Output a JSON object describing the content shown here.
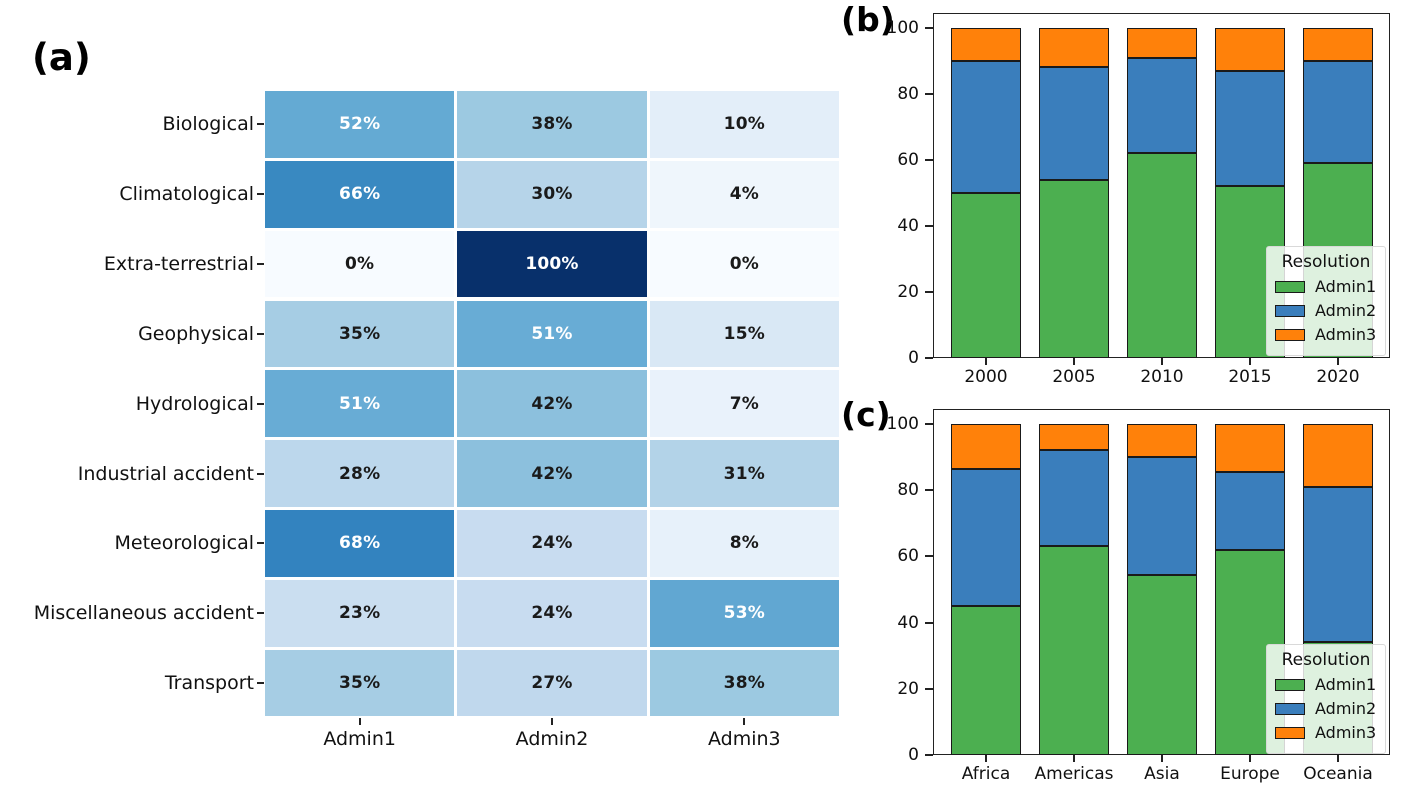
{
  "figure": {
    "panel_a_label": "(a)",
    "panel_b_label": "(b)",
    "panel_c_label": "(c)"
  },
  "chart_data": [
    {
      "id": "panel-a",
      "type": "heatmap",
      "rows": [
        "Biological",
        "Climatological",
        "Extra-terrestrial",
        "Geophysical",
        "Hydrological",
        "Industrial accident",
        "Meteorological",
        "Miscellaneous accident",
        "Transport"
      ],
      "columns": [
        "Admin1",
        "Admin2",
        "Admin3"
      ],
      "values_percent": [
        [
          52,
          38,
          10
        ],
        [
          66,
          30,
          4
        ],
        [
          0,
          100,
          0
        ],
        [
          35,
          51,
          15
        ],
        [
          51,
          42,
          7
        ],
        [
          28,
          42,
          31
        ],
        [
          68,
          24,
          8
        ],
        [
          23,
          24,
          53
        ],
        [
          35,
          27,
          38
        ]
      ],
      "cell_label_suffix": "%",
      "value_domain": [
        0,
        100
      ],
      "colormap": "Blues",
      "colormap_stops": [
        "#f7fbff",
        "#deebf7",
        "#c6dbef",
        "#9ecae1",
        "#6baed6",
        "#4292c6",
        "#2171b5",
        "#08519c",
        "#08306b"
      ],
      "light_text_threshold": 50,
      "light_text_color": "#ffffff",
      "dark_text_color": "#1a1a1a"
    },
    {
      "id": "panel-b",
      "type": "stacked-bar",
      "categories": [
        "2000",
        "2005",
        "2010",
        "2015",
        "2020"
      ],
      "series": [
        {
          "name": "Admin1",
          "color": "#4caf50",
          "values": [
            50,
            54,
            62,
            52,
            59
          ]
        },
        {
          "name": "Admin2",
          "color": "#3a7ebc",
          "values": [
            40,
            34,
            29,
            35,
            31
          ]
        },
        {
          "name": "Admin3",
          "color": "#ff810a",
          "values": [
            10,
            12,
            9,
            13,
            10
          ]
        }
      ],
      "ylim": [
        0,
        104.5
      ],
      "yticks": [
        0,
        20,
        40,
        60,
        80,
        100
      ],
      "grid": false,
      "legend_title": "Resolution",
      "legend_position": "lower right"
    },
    {
      "id": "panel-c",
      "type": "stacked-bar",
      "categories": [
        "Africa",
        "Americas",
        "Asia",
        "Europe",
        "Oceania"
      ],
      "series": [
        {
          "name": "Admin1",
          "color": "#4caf50",
          "values": [
            45,
            63,
            54.5,
            62,
            34
          ]
        },
        {
          "name": "Admin2",
          "color": "#3a7ebc",
          "values": [
            41.5,
            29,
            35.5,
            23.5,
            47
          ]
        },
        {
          "name": "Admin3",
          "color": "#ff810a",
          "values": [
            13.5,
            8,
            10,
            14.5,
            19
          ]
        }
      ],
      "ylim": [
        0,
        104.5
      ],
      "yticks": [
        0,
        20,
        40,
        60,
        80,
        100
      ],
      "grid": false,
      "legend_title": "Resolution",
      "legend_position": "lower right"
    }
  ]
}
